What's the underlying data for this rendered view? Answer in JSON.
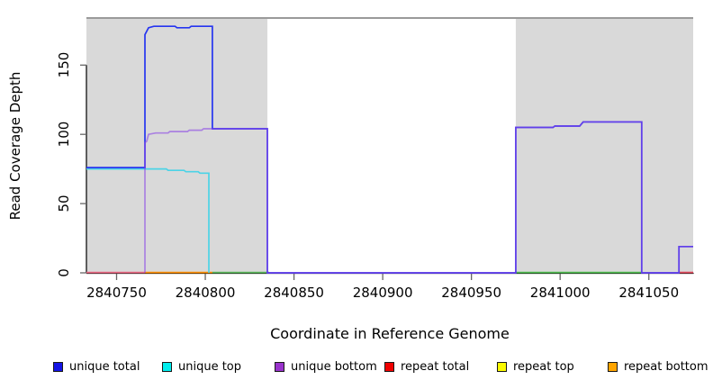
{
  "chart_data": {
    "type": "line",
    "title": "",
    "xlabel": "Coordinate in Reference Genome",
    "ylabel": "Read Coverage Depth",
    "x_domain": [
      2840733,
      2841075
    ],
    "y_domain": [
      0,
      184
    ],
    "grid": false,
    "x_ticks": [
      2840750,
      2840800,
      2840850,
      2840900,
      2840950,
      2841000,
      2841050
    ],
    "x_tick_labels": [
      "2840750",
      "2840800",
      "2840850",
      "2840900",
      "2840950",
      "2841000",
      "2841050"
    ],
    "y_ticks": [
      0,
      50,
      100,
      150
    ],
    "y_tick_labels": [
      "0",
      "50",
      "100",
      "150"
    ],
    "shaded_regions": [
      {
        "x0": 2840733,
        "x1": 2840835,
        "color": "#d9d9d9"
      },
      {
        "x0": 2840975,
        "x1": 2841075,
        "color": "#d9d9d9"
      }
    ],
    "top_boundary_line": {
      "value": 184,
      "color": "#9a9a9a"
    },
    "series": [
      {
        "name": "unique top",
        "color": "#4cd3e6",
        "opacity": 1,
        "points": [
          [
            2840733,
            75
          ],
          [
            2840778,
            75
          ],
          [
            2840779,
            74
          ],
          [
            2840788,
            74
          ],
          [
            2840789,
            73
          ],
          [
            2840796,
            73
          ],
          [
            2840797,
            72
          ],
          [
            2840802,
            72
          ],
          [
            2840802,
            0
          ]
        ]
      },
      {
        "name": "unique total",
        "color": "#2635f0",
        "opacity": 1,
        "points": [
          [
            2840733,
            76
          ],
          [
            2840766,
            76
          ],
          [
            2840766,
            172
          ],
          [
            2840768,
            177
          ],
          [
            2840771,
            178
          ],
          [
            2840783,
            178
          ],
          [
            2840784,
            177
          ],
          [
            2840791,
            177
          ],
          [
            2840792,
            178
          ],
          [
            2840804,
            178
          ],
          [
            2840804,
            104
          ],
          [
            2840835,
            104
          ],
          [
            2840835,
            0
          ],
          [
            2840975,
            0
          ],
          [
            2840975,
            105
          ],
          [
            2840996,
            105
          ],
          [
            2840997,
            106
          ],
          [
            2841011,
            106
          ],
          [
            2841013,
            109
          ],
          [
            2841046,
            109
          ],
          [
            2841046,
            0
          ],
          [
            2841067,
            0
          ],
          [
            2841067,
            19
          ],
          [
            2841075,
            19
          ]
        ]
      },
      {
        "name": "unique bottom",
        "color": "#8a46e6",
        "opacity": 0.6,
        "points": [
          [
            2840766,
            0
          ],
          [
            2840766,
            94
          ],
          [
            2840767,
            95
          ],
          [
            2840768,
            100
          ],
          [
            2840772,
            101
          ],
          [
            2840779,
            101
          ],
          [
            2840780,
            102
          ],
          [
            2840790,
            102
          ],
          [
            2840791,
            103
          ],
          [
            2840798,
            103
          ],
          [
            2840799,
            104
          ],
          [
            2840835,
            104
          ],
          [
            2840835,
            0
          ],
          [
            2840975,
            0
          ],
          [
            2840975,
            105
          ],
          [
            2840996,
            105
          ],
          [
            2840997,
            106
          ],
          [
            2841011,
            106
          ],
          [
            2841013,
            109
          ],
          [
            2841046,
            109
          ],
          [
            2841046,
            0
          ],
          [
            2841067,
            0
          ],
          [
            2841067,
            19
          ],
          [
            2841075,
            19
          ]
        ]
      }
    ],
    "zero_line_segments": [
      {
        "x0": 2840733,
        "x1": 2840766,
        "color": "#ec6a84"
      },
      {
        "x0": 2840766,
        "x1": 2840804,
        "color": "#ff9100"
      },
      {
        "x0": 2840804,
        "x1": 2840836,
        "color": "#5cb85c"
      },
      {
        "x0": 2840975,
        "x1": 2841046,
        "color": "#4fbb4f"
      },
      {
        "x0": 2841067,
        "x1": 2841075,
        "color": "#e14b5e"
      }
    ],
    "legend": {
      "position": "bottom",
      "items": [
        {
          "label": "unique total",
          "color": "#1414e6"
        },
        {
          "label": "unique top",
          "color": "#00eeee"
        },
        {
          "label": "unique bottom",
          "color": "#9933cc"
        },
        {
          "label": "repeat total",
          "color": "#f00000"
        },
        {
          "label": "repeat top",
          "color": "#fafa00"
        },
        {
          "label": "repeat bottom",
          "color": "#ffa500"
        }
      ]
    }
  }
}
